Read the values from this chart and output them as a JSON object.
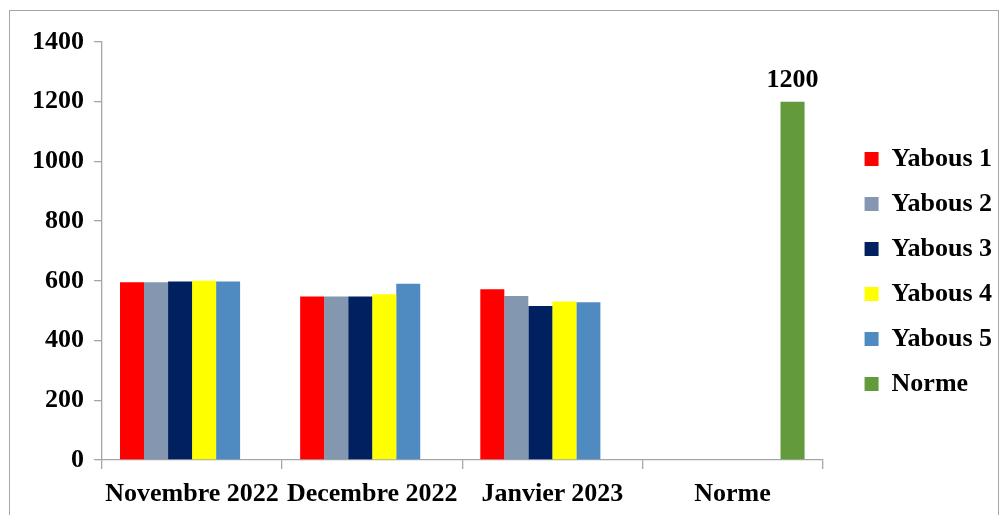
{
  "chart_data": {
    "type": "bar",
    "categories": [
      "Novembre 2022",
      "Decembre 2022",
      "Janvier 2023",
      "Norme"
    ],
    "series": [
      {
        "name": "Yabous 1",
        "color": "#ff0000",
        "values": [
          595,
          548,
          572,
          null
        ]
      },
      {
        "name": "Yabous 2",
        "color": "#8497b0",
        "values": [
          595,
          548,
          549,
          null
        ]
      },
      {
        "name": "Yabous 3",
        "color": "#002060",
        "values": [
          598,
          548,
          516,
          null
        ]
      },
      {
        "name": "Yabous 4",
        "color": "#ffff00",
        "values": [
          600,
          555,
          531,
          null
        ]
      },
      {
        "name": "Yabous 5",
        "color": "#4f8bc0",
        "values": [
          598,
          590,
          528,
          null
        ]
      },
      {
        "name": "Norme",
        "color": "#629a3c",
        "values": [
          null,
          null,
          null,
          1200
        ],
        "value_labels": [
          null,
          null,
          null,
          "1200"
        ]
      }
    ],
    "ylim": [
      0,
      1400
    ],
    "yticks": [
      0,
      200,
      400,
      600,
      800,
      1000,
      1200,
      1400
    ],
    "grid": false,
    "legend": "right"
  }
}
